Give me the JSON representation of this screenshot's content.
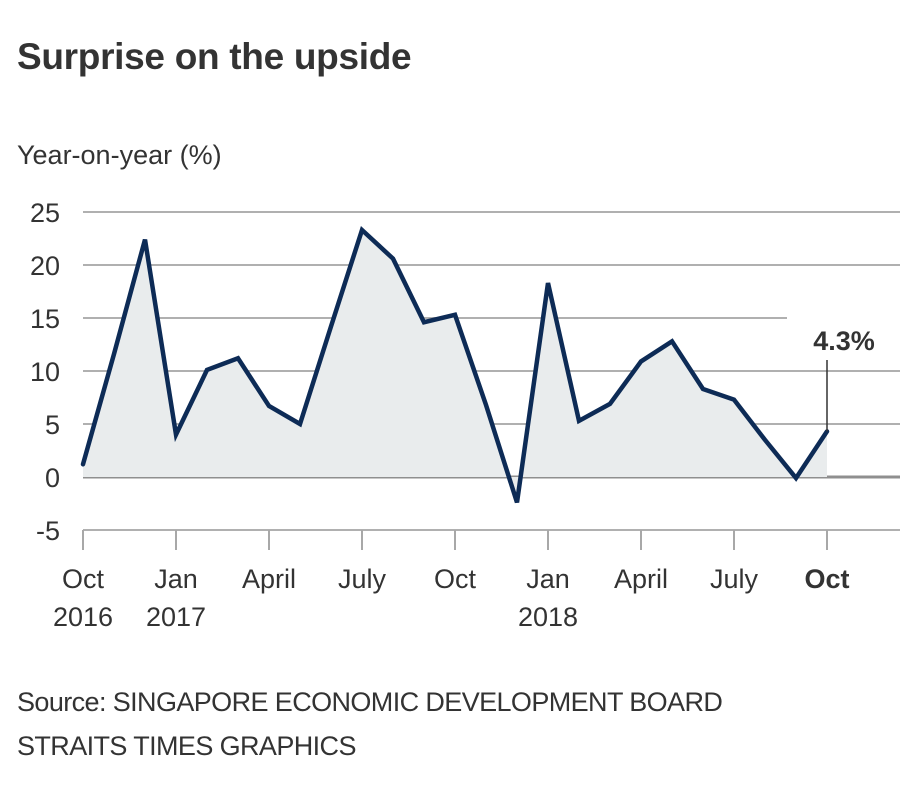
{
  "chart_data": {
    "type": "area",
    "title": "Surprise on the upside",
    "ylabel": "Year-on-year (%)",
    "xlabel": "",
    "ylim": [
      -5,
      25
    ],
    "yticks": [
      25,
      20,
      15,
      10,
      5,
      0,
      -5
    ],
    "grid": true,
    "x": [
      "Oct 2016",
      "Nov 2016",
      "Dec 2016",
      "Jan 2017",
      "Feb 2017",
      "Mar 2017",
      "Apr 2017",
      "May 2017",
      "Jun 2017",
      "Jul 2017",
      "Aug 2017",
      "Sep 2017",
      "Oct 2017",
      "Nov 2017",
      "Dec 2017",
      "Jan 2018",
      "Feb 2018",
      "Mar 2018",
      "Apr 2018",
      "May 2018",
      "Jun 2018",
      "Jul 2018",
      "Aug 2018",
      "Sep 2018",
      "Oct 2018"
    ],
    "series": [
      {
        "name": "Year-on-year change",
        "values": [
          1.2,
          11.6,
          22.4,
          4.0,
          10.1,
          11.2,
          6.7,
          5.0,
          14.2,
          23.3,
          20.6,
          14.6,
          15.3,
          6.8,
          -2.4,
          18.3,
          5.3,
          6.9,
          10.9,
          12.8,
          8.3,
          7.3,
          3.5,
          -0.1,
          4.3
        ],
        "color": "#0d2b56",
        "fill": "#e9eced"
      }
    ],
    "xticks": [
      {
        "index": 0,
        "line1": "Oct",
        "line2": "2016",
        "bold": false
      },
      {
        "index": 3,
        "line1": "Jan",
        "line2": "2017",
        "bold": false
      },
      {
        "index": 6,
        "line1": "April",
        "line2": "",
        "bold": false
      },
      {
        "index": 9,
        "line1": "July",
        "line2": "",
        "bold": false
      },
      {
        "index": 12,
        "line1": "Oct",
        "line2": "",
        "bold": false
      },
      {
        "index": 15,
        "line1": "Jan",
        "line2": "2018",
        "bold": false
      },
      {
        "index": 18,
        "line1": "April",
        "line2": "",
        "bold": false
      },
      {
        "index": 21,
        "line1": "July",
        "line2": "",
        "bold": false
      },
      {
        "index": 24,
        "line1": "Oct",
        "line2": "",
        "bold": true
      }
    ],
    "annotation": {
      "index": 24,
      "text": "4.3%"
    }
  },
  "source": {
    "line1": "Source: SINGAPORE ECONOMIC DEVELOPMENT BOARD",
    "line2": "STRAITS TIMES GRAPHICS"
  }
}
